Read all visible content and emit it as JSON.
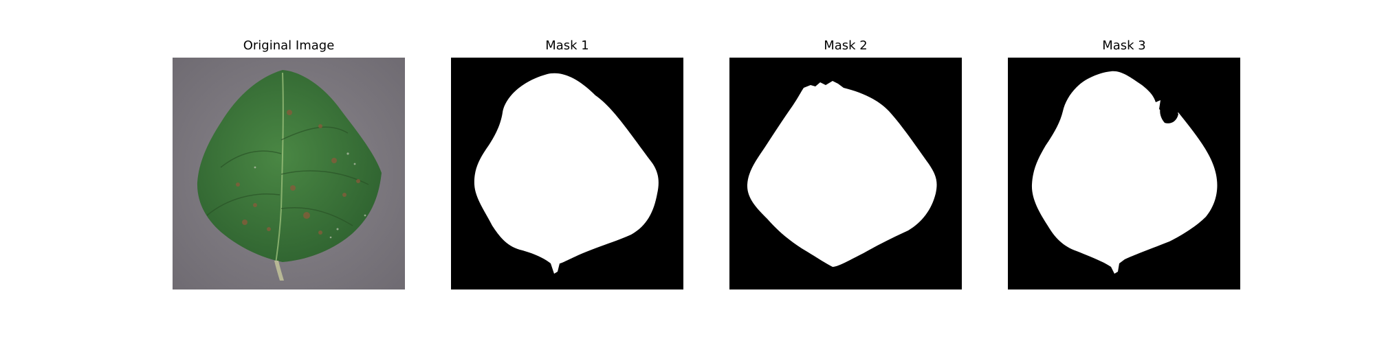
{
  "figure": {
    "panels": [
      {
        "id": "original",
        "title": "Original Image",
        "kind": "photo"
      },
      {
        "id": "mask1",
        "title": "Mask 1",
        "kind": "mask"
      },
      {
        "id": "mask2",
        "title": "Mask 2",
        "kind": "mask"
      },
      {
        "id": "mask3",
        "title": "Mask 3",
        "kind": "mask"
      }
    ]
  },
  "colors": {
    "background_surface": "#7d7a80",
    "leaf_green": "#3f7a3a",
    "leaf_dark": "#2c5a29",
    "spot_brown": "#8a5a3a",
    "mask_bg": "#000000",
    "mask_fg": "#ffffff"
  }
}
